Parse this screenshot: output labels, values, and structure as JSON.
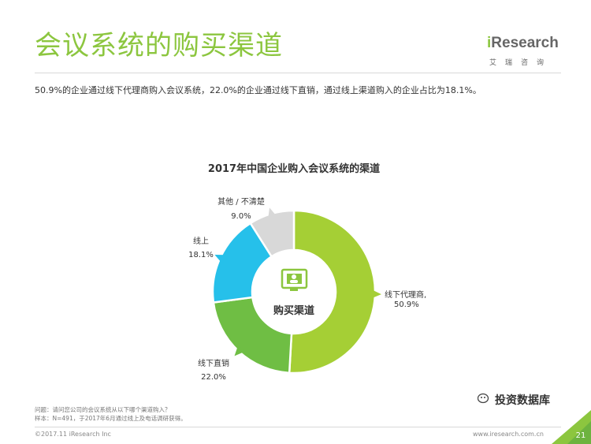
{
  "header": {
    "title": "会议系统的购买渠道",
    "logo_text_i": "i",
    "logo_text_rest": "Research",
    "logo_sub": "艾瑞咨询"
  },
  "summary": "50.9%的企业通过线下代理商购入会议系统，22.0%的企业通过线下直销，通过线上渠道购入的企业占比为18.1%。",
  "chart_data": {
    "type": "pie",
    "title": "2017年中国企业购入会议系统的渠道",
    "center_label": "购买渠道",
    "slices": [
      {
        "name": "线下代理商,",
        "value": 50.9,
        "value_label": "50.9%",
        "color": "#a5cf35"
      },
      {
        "name": "线下直销",
        "value": 22.0,
        "value_label": "22.0%",
        "color": "#6fbe44"
      },
      {
        "name": "线上",
        "value": 18.1,
        "value_label": "18.1%",
        "color": "#26c0ea"
      },
      {
        "name": "其他 / 不清楚",
        "value": 9.0,
        "value_label": "9.0%",
        "color": "#d8d8d8"
      }
    ]
  },
  "footnotes": {
    "question": "问题：请问您公司的会议系统从以下哪个渠道购入？",
    "sample": "样本：N=491，于2017年6月通过线上及电话调研获得。"
  },
  "footer": {
    "copyright": "©2017.11 iResearch Inc",
    "website": "www.iresearch.com.cn",
    "page_number": "21",
    "watermark": "投资数据库"
  },
  "colors": {
    "accent": "#8cc63f",
    "center_icon": "#8cc63f"
  }
}
